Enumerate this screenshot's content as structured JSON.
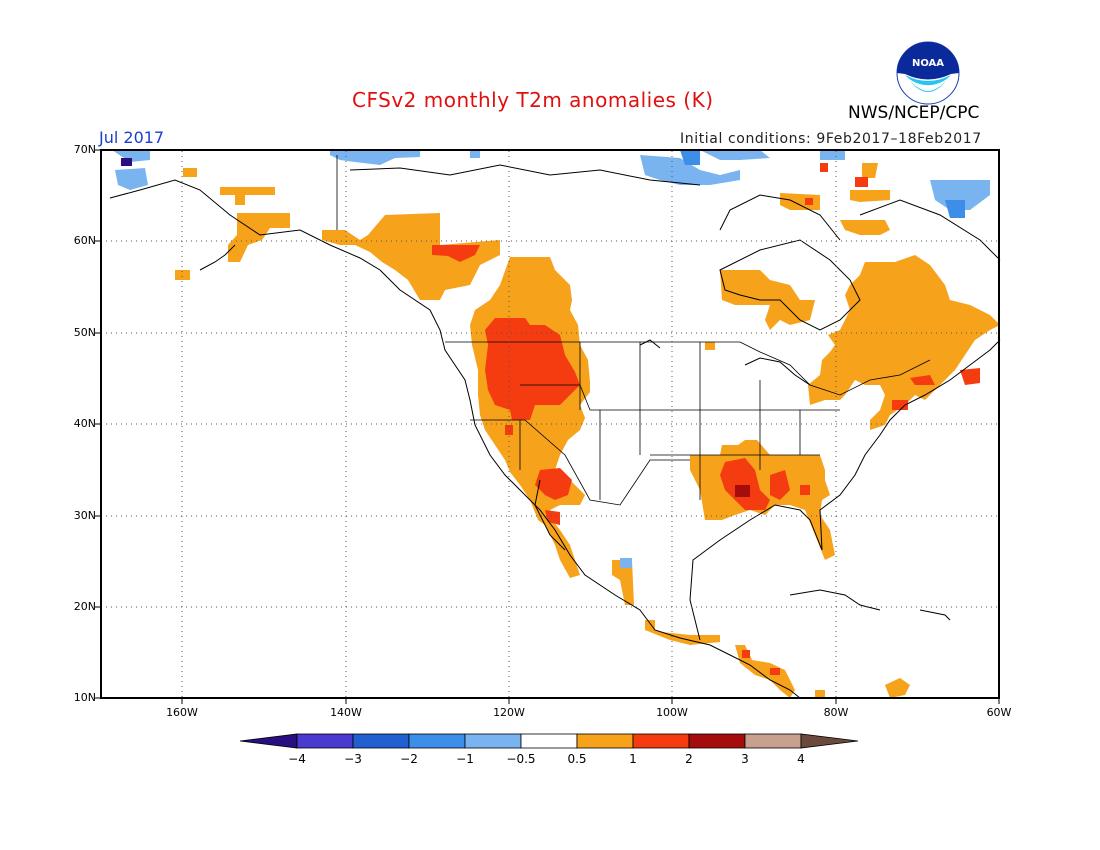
{
  "title": "CFSv2 monthly T2m anomalies (K)",
  "month": "Jul 2017",
  "agency": "NWS/NCEP/CPC",
  "initial_conditions": "Initial conditions: 9Feb2017–18Feb2017",
  "logo": {
    "text": "NOAA",
    "icon": "noaa-logo-icon"
  },
  "map": {
    "projection": "lat-lon",
    "lon_range": [
      -170,
      -60
    ],
    "lat_range": [
      10,
      70
    ],
    "grid": "dotted",
    "lat_labels": [
      "70N",
      "60N",
      "50N",
      "40N",
      "30N",
      "20N",
      "10N"
    ],
    "lon_labels": [
      "160W",
      "140W",
      "120W",
      "100W",
      "80W",
      "60W"
    ]
  },
  "colorbar": {
    "labels": [
      "−4",
      "−3",
      "−2",
      "−1",
      "−0.5",
      "0.5",
      "1",
      "2",
      "3",
      "4"
    ],
    "colors": [
      "#2a0f80",
      "#4a3ad0",
      "#2060d0",
      "#3c8ee8",
      "#7ab4f0",
      "#ffffff",
      "#f7a21b",
      "#f43c10",
      "#a50d0d",
      "#c8a090",
      "#6b4a3c"
    ]
  }
}
